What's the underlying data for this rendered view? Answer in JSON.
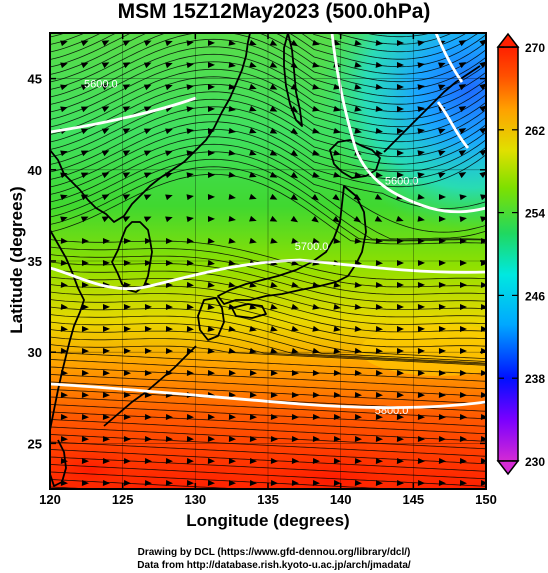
{
  "title": "MSM 15Z12May2023 (500.0hPa)",
  "x_axis": {
    "label": "Longitude (degrees)",
    "ticks": [
      120,
      125,
      130,
      135,
      140,
      145,
      150
    ]
  },
  "y_axis": {
    "label": "Latitude  (degrees)",
    "ticks": [
      25,
      30,
      35,
      40,
      45
    ]
  },
  "extent": {
    "lon": [
      120,
      150
    ],
    "lat": [
      22.5,
      47.5
    ]
  },
  "colorbar": {
    "ticks": [
      230,
      238,
      246,
      254,
      262,
      270
    ],
    "colors": [
      "#d42ad4",
      "#7a00ff",
      "#0010ff",
      "#00a8ff",
      "#00e8e0",
      "#20d860",
      "#7ee000",
      "#e0e000",
      "#ffa000",
      "#ff5000",
      "#ff2000"
    ]
  },
  "contours": [
    {
      "label": "5800.0",
      "lon": 143.5,
      "lat": 26.6
    },
    {
      "label": "5700.0",
      "lon": 138.0,
      "lat": 35.6
    },
    {
      "label": "5600.0",
      "lon": 123.5,
      "lat": 44.5
    },
    {
      "label": "5600.0",
      "lon": 144.2,
      "lat": 39.2
    }
  ],
  "credits": [
    "Drawing by DCL (https://www.gfd-dennou.org/library/dcl/)",
    "Data from http://database.rish.kyoto-u.ac.jp/arch/jmadata/"
  ]
}
